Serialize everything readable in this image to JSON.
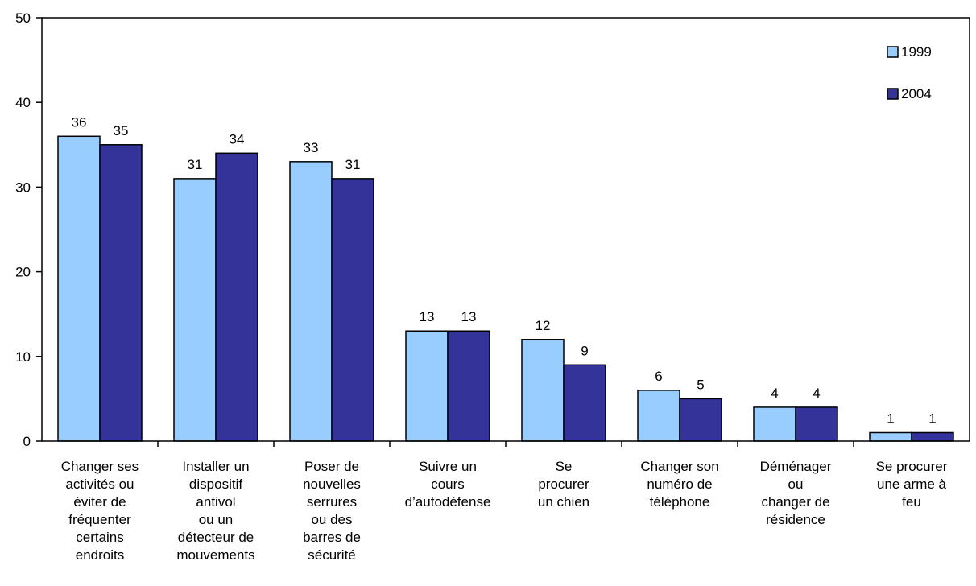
{
  "chart_data": {
    "type": "bar",
    "categories": [
      [
        "Changer ses",
        "activités ou",
        "éviter de",
        "fréquenter",
        "certains",
        "endroits"
      ],
      [
        "Installer un",
        "dispositif",
        "antivol",
        "ou un",
        "détecteur de",
        "mouvements"
      ],
      [
        "Poser de",
        "nouvelles",
        "serrures",
        "ou des",
        "barres de",
        "sécurité"
      ],
      [
        "Suivre un",
        "cours",
        "d’autodéfense"
      ],
      [
        "Se",
        "procurer",
        "un chien"
      ],
      [
        "Changer son",
        "numéro de",
        "téléphone"
      ],
      [
        "Déménager",
        "ou",
        "changer de",
        "résidence"
      ],
      [
        "Se procurer",
        "une arme à",
        "feu"
      ]
    ],
    "series": [
      {
        "name": "1999",
        "values": [
          36,
          31,
          33,
          13,
          12,
          6,
          4,
          1
        ],
        "color": "#99ccff"
      },
      {
        "name": "2004",
        "values": [
          35,
          34,
          31,
          13,
          9,
          5,
          4,
          1
        ],
        "color": "#333399"
      }
    ],
    "yticks": [
      0,
      10,
      20,
      30,
      40,
      50
    ],
    "ylim": [
      0,
      50
    ],
    "title": "",
    "xlabel": "",
    "ylabel": "",
    "grid": false,
    "legend_position": "top-right"
  }
}
